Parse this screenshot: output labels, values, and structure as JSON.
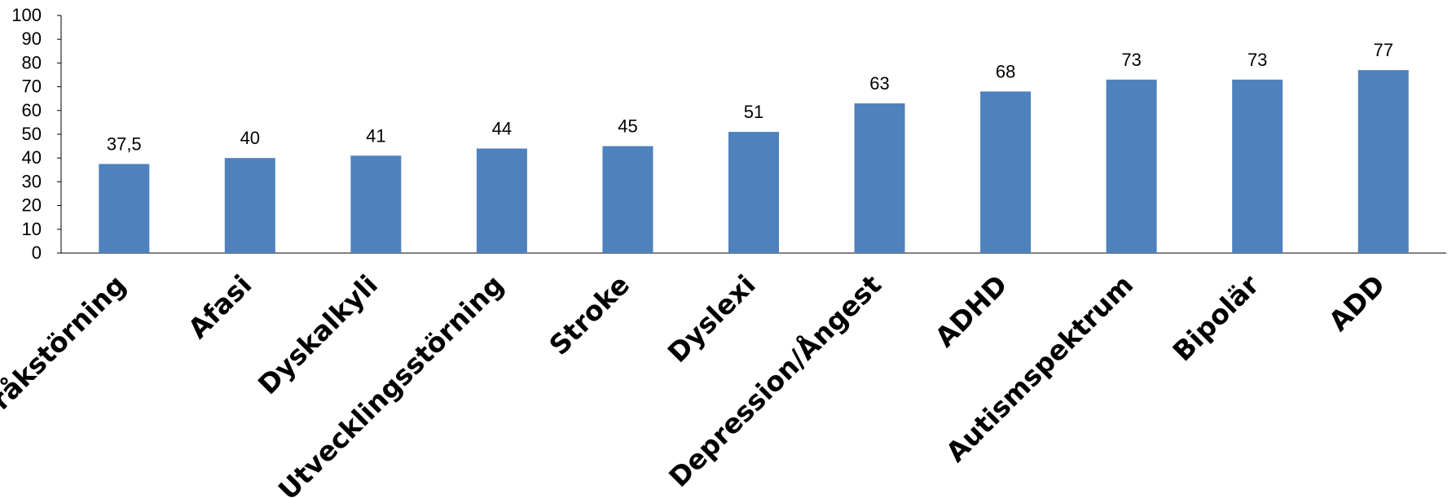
{
  "chart_data": {
    "type": "bar",
    "title": "",
    "xlabel": "",
    "ylabel": "",
    "categories": [
      "Språkstörning",
      "Afasi",
      "Dyskalkyli",
      "Utvecklingsstörning",
      "Stroke",
      "Dyslexi",
      "Depression/Ångest",
      "ADHD",
      "Autismspektrum",
      "Bipolär",
      "ADD"
    ],
    "values": [
      37.5,
      40,
      41,
      44,
      45,
      51,
      63,
      68,
      73,
      73,
      77
    ],
    "data_labels": [
      "37,5",
      "40",
      "41",
      "44",
      "45",
      "51",
      "63",
      "68",
      "73",
      "73",
      "77"
    ],
    "ylim": [
      0,
      100
    ],
    "yticks": [
      0,
      10,
      20,
      30,
      40,
      50,
      60,
      70,
      80,
      90,
      100
    ],
    "grid": false,
    "legend": "none",
    "bar_color": "#4F81BD"
  }
}
